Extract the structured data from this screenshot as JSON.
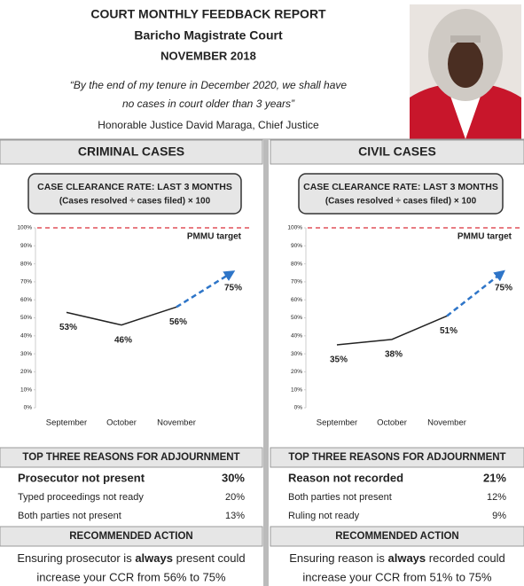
{
  "header": {
    "title": "COURT MONTHLY FEEDBACK REPORT",
    "court": "Baricho Magistrate Court",
    "month": "NOVEMBER 2018",
    "quote": [
      "“By the end of my tenure in December 2020, we shall have",
      "no cases in court older than 3 years”"
    ],
    "attribution": "Honorable Justice David Maraga, Chief Justice"
  },
  "panels": [
    {
      "heading": "CRIMINAL CASES",
      "box_title": "CASE CLEARANCE RATE: LAST 3 MONTHS",
      "box_formula": "(Cases resolved ÷ cases filed) × 100",
      "reasons_title": "TOP THREE REASONS FOR ADJOURNMENT",
      "reasons": [
        [
          "Prosecutor not present",
          "30%"
        ],
        [
          "Typed proceedings not ready",
          "20%"
        ],
        [
          "Both parties not present",
          "13%"
        ]
      ],
      "action_title": "RECOMMENDED ACTION",
      "action_text": [
        "Ensuring prosecutor is ",
        "always",
        " present could",
        "increase your CCR from 56% to 75%"
      ]
    },
    {
      "heading": "CIVIL CASES",
      "box_title": "CASE CLEARANCE RATE: LAST 3 MONTHS",
      "box_formula": "(Cases resolved ÷ cases filed) × 100",
      "reasons_title": "TOP THREE REASONS FOR ADJOURNMENT",
      "reasons": [
        [
          "Reason not recorded",
          "21%"
        ],
        [
          "Both parties not present",
          "12%"
        ],
        [
          "Ruling not ready",
          "9%"
        ]
      ],
      "action_title": "RECOMMENDED ACTION",
      "action_text": [
        "Ensuring reason is ",
        "always",
        " recorded could",
        "increase your CCR from 51% to 75%"
      ]
    }
  ],
  "chart_data": [
    {
      "type": "line",
      "categories": [
        "September",
        "October",
        "November",
        null
      ],
      "series": [
        {
          "color": "#222222",
          "values": [
            53,
            46,
            56,
            null
          ],
          "value_labels": [
            "53%",
            "46%",
            "56%",
            null
          ]
        },
        {
          "color": "#2e75c8",
          "dashed": true,
          "values": [
            null,
            null,
            56,
            75
          ],
          "value_labels": [
            null,
            null,
            null,
            "75%"
          ]
        }
      ],
      "ylim": [
        0,
        100
      ],
      "yticks": [
        {
          "value": 0,
          "label": "0%"
        },
        {
          "value": 10,
          "label": "10%"
        },
        {
          "value": 20,
          "label": "20%"
        },
        {
          "value": 30,
          "label": "30%"
        },
        {
          "value": 40,
          "label": "40%"
        },
        {
          "value": 50,
          "label": "50%"
        },
        {
          "value": 60,
          "label": "60%"
        },
        {
          "value": 70,
          "label": "70%"
        },
        {
          "value": 80,
          "label": "80%"
        },
        {
          "value": 90,
          "label": "90%"
        },
        {
          "value": 100,
          "label": "100%"
        }
      ],
      "target": 100,
      "target_label": "PMMU target",
      "target_color": "#e0505a"
    },
    {
      "type": "line",
      "categories": [
        "September",
        "October",
        "November",
        null
      ],
      "series": [
        {
          "color": "#222222",
          "values": [
            35,
            38,
            51,
            null
          ],
          "value_labels": [
            "35%",
            "38%",
            "51%",
            null
          ]
        },
        {
          "color": "#2e75c8",
          "dashed": true,
          "values": [
            null,
            null,
            51,
            75
          ],
          "value_labels": [
            null,
            null,
            null,
            "75%"
          ]
        }
      ],
      "ylim": [
        0,
        100
      ],
      "yticks": [
        {
          "value": 0,
          "label": "0%"
        },
        {
          "value": 10,
          "label": "10%"
        },
        {
          "value": 20,
          "label": "20%"
        },
        {
          "value": 30,
          "label": "30%"
        },
        {
          "value": 40,
          "label": "40%"
        },
        {
          "value": 50,
          "label": "50%"
        },
        {
          "value": 60,
          "label": "60%"
        },
        {
          "value": 70,
          "label": "70%"
        },
        {
          "value": 80,
          "label": "80%"
        },
        {
          "value": 90,
          "label": "90%"
        },
        {
          "value": 100,
          "label": "100%"
        }
      ],
      "target": 100,
      "target_label": "PMMU target",
      "target_color": "#e0505a"
    }
  ]
}
